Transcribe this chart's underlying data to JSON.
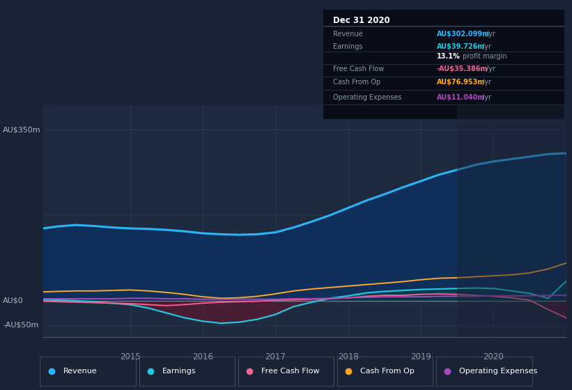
{
  "bg_color": "#1a2235",
  "plot_bg_color": "#1e2a40",
  "grid_color": "#2a3a55",
  "years": [
    2013.8,
    2014.0,
    2014.25,
    2014.5,
    2014.75,
    2015.0,
    2015.25,
    2015.5,
    2015.75,
    2016.0,
    2016.25,
    2016.5,
    2016.75,
    2017.0,
    2017.25,
    2017.5,
    2017.75,
    2018.0,
    2018.25,
    2018.5,
    2018.75,
    2019.0,
    2019.25,
    2019.5,
    2019.75,
    2020.0,
    2020.25,
    2020.5,
    2020.75,
    2021.0
  ],
  "revenue": [
    148,
    152,
    155,
    153,
    150,
    148,
    147,
    145,
    142,
    138,
    136,
    135,
    136,
    140,
    150,
    162,
    175,
    190,
    205,
    218,
    232,
    245,
    258,
    268,
    278,
    285,
    290,
    295,
    300,
    302
  ],
  "earnings": [
    2,
    1,
    0,
    -2,
    -5,
    -8,
    -15,
    -25,
    -35,
    -42,
    -46,
    -44,
    -38,
    -28,
    -12,
    -3,
    5,
    10,
    16,
    19,
    21,
    23,
    24,
    25,
    26,
    25,
    20,
    15,
    5,
    40
  ],
  "free_cash_flow": [
    -1,
    -2,
    -3,
    -4,
    -5,
    -6,
    -8,
    -10,
    -8,
    -5,
    -3,
    -2,
    -1,
    1,
    2,
    3,
    4,
    6,
    9,
    11,
    11,
    13,
    14,
    13,
    11,
    9,
    6,
    1,
    -18,
    -35
  ],
  "cash_from_op": [
    18,
    19,
    20,
    20,
    21,
    22,
    20,
    17,
    13,
    8,
    5,
    6,
    9,
    14,
    20,
    24,
    27,
    30,
    33,
    36,
    39,
    43,
    46,
    47,
    49,
    51,
    53,
    57,
    65,
    77
  ],
  "operating_expenses": [
    4,
    4,
    4,
    4,
    4,
    5,
    5,
    4,
    4,
    3,
    3,
    3,
    3,
    3,
    4,
    4,
    5,
    6,
    7,
    8,
    8,
    8,
    9,
    9,
    9,
    10,
    10,
    10,
    11,
    11
  ],
  "revenue_color": "#29b6f6",
  "earnings_color": "#26c6da",
  "fcf_color": "#f06292",
  "cashop_color": "#ffa726",
  "opex_color": "#ab47bc",
  "ylim_min": -75,
  "ylim_max": 400,
  "yticks": [
    -50,
    0,
    350
  ],
  "ytick_labels": [
    "-AU$50m",
    "AU$0",
    "AU$350m"
  ],
  "xtick_years": [
    2015,
    2016,
    2017,
    2018,
    2019,
    2020
  ],
  "info_box": {
    "title": "Dec 31 2020",
    "rows": [
      {
        "label": "Revenue",
        "value": "AU$302.099m",
        "unit": "/yr",
        "value_color": "#29b6f6"
      },
      {
        "label": "Earnings",
        "value": "AU$39.726m",
        "unit": "/yr",
        "value_color": "#26c6da"
      },
      {
        "label": "",
        "value": "13.1%",
        "unit": " profit margin",
        "value_color": "#ffffff"
      },
      {
        "label": "Free Cash Flow",
        "value": "-AU$35.386m",
        "unit": "/yr",
        "value_color": "#f06292"
      },
      {
        "label": "Cash From Op",
        "value": "AU$76.953m",
        "unit": "/yr",
        "value_color": "#ffa726"
      },
      {
        "label": "Operating Expenses",
        "value": "AU$11.040m",
        "unit": "/yr",
        "value_color": "#ab47bc"
      }
    ]
  },
  "legend_items": [
    {
      "label": "Revenue",
      "color": "#29b6f6"
    },
    {
      "label": "Earnings",
      "color": "#26c6da"
    },
    {
      "label": "Free Cash Flow",
      "color": "#f06292"
    },
    {
      "label": "Cash From Op",
      "color": "#ffa726"
    },
    {
      "label": "Operating Expenses",
      "color": "#ab47bc"
    }
  ]
}
